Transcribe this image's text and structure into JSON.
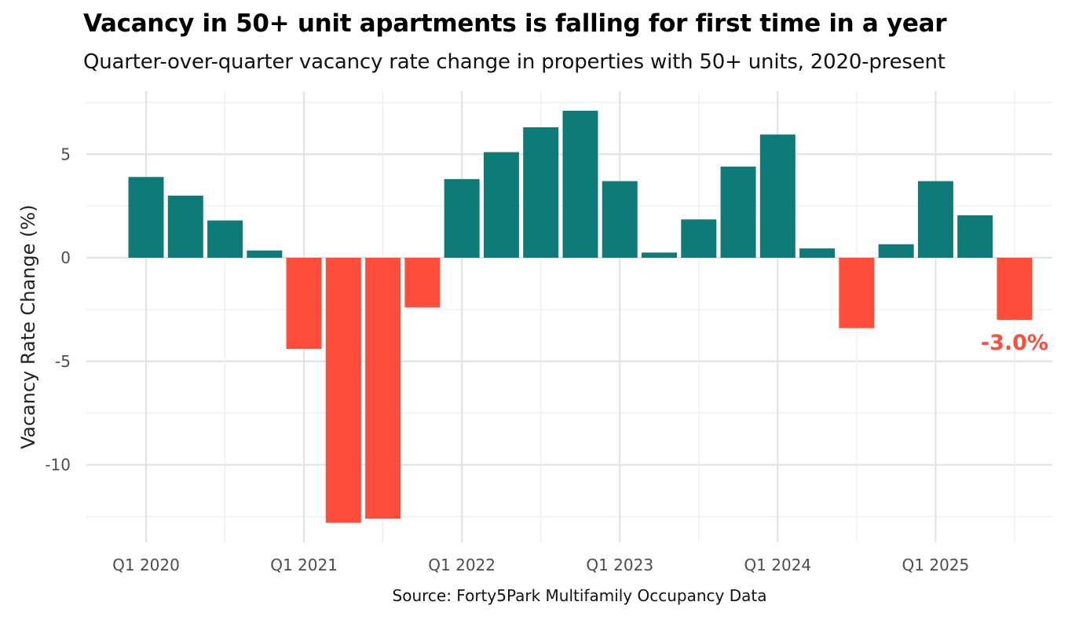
{
  "chart_data": {
    "type": "bar",
    "title": "Vacancy in 50+ unit apartments is falling for first time in a year",
    "subtitle": "Quarter-over-quarter vacancy rate change in properties with 50+ units, 2020-present",
    "xlabel": "",
    "ylabel": "Vacancy Rate Change (%)",
    "caption": "Source: Forty5Park Multifamily Occupancy Data",
    "ylim": [
      -12.9,
      7.2
    ],
    "y_ticks": [
      5,
      0,
      -5,
      -10
    ],
    "y_tick_labels": [
      "5",
      "0",
      "-5",
      "-10"
    ],
    "x_tick_labels": [
      "Q1 2020",
      "Q1 2021",
      "Q1 2022",
      "Q1 2023",
      "Q1 2024",
      "Q1 2025"
    ],
    "x_tick_label_indices": [
      0,
      4,
      8,
      12,
      16,
      20
    ],
    "categories": [
      "Q1 2020",
      "Q2 2020",
      "Q3 2020",
      "Q4 2020",
      "Q1 2021",
      "Q2 2021",
      "Q3 2021",
      "Q4 2021",
      "Q1 2022",
      "Q2 2022",
      "Q3 2022",
      "Q4 2022",
      "Q1 2023",
      "Q2 2023",
      "Q3 2023",
      "Q4 2023",
      "Q1 2024",
      "Q2 2024",
      "Q3 2024",
      "Q4 2024",
      "Q1 2025",
      "Q2 2025",
      "Q3 2025"
    ],
    "values": [
      3.9,
      3.0,
      1.8,
      0.35,
      -4.4,
      -12.8,
      -12.6,
      -2.4,
      3.8,
      5.1,
      6.3,
      7.1,
      3.7,
      0.25,
      1.85,
      4.4,
      5.95,
      0.45,
      -3.4,
      0.65,
      3.7,
      2.05,
      -3.0
    ],
    "colors": {
      "positive": "#0f7b79",
      "negative": "#ff4d3b"
    },
    "grid": true,
    "annotations": [
      {
        "index": 22,
        "text": "-3.0%",
        "color": "#ff4d3b"
      }
    ]
  }
}
